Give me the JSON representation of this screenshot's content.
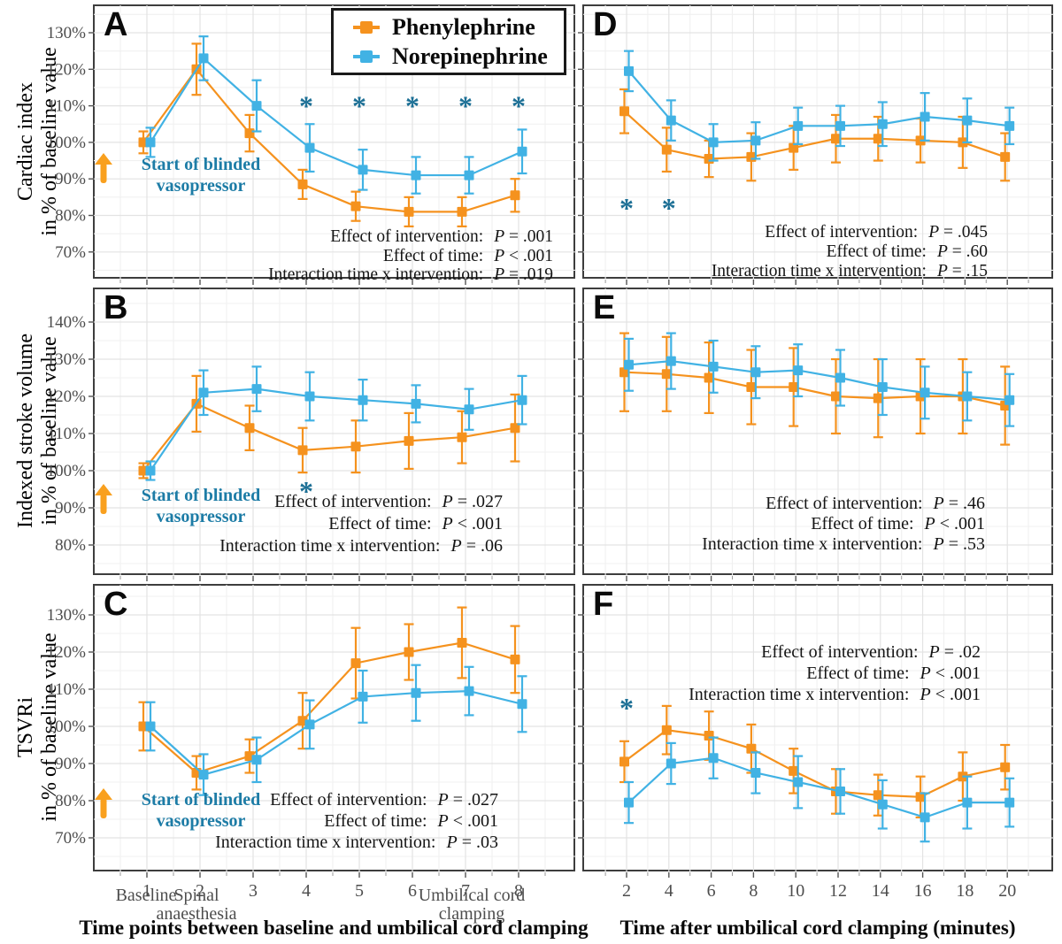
{
  "figure": {
    "description": "Six-panel clinical trial figure comparing Phenylephrine vs Norepinephrine haemodynamics"
  },
  "colors": {
    "phenylephrine": "#F5921E",
    "norepinephrine": "#41B2E4",
    "asterisk": "#1C6F95",
    "annotation_text": "#1D7CA6",
    "arrow": "#F9A01E",
    "grid_major": "#e3e3e3",
    "grid_minor": "#f0f0f0",
    "tick_label": "#4d4d4d",
    "panel_border": "#3d3d3d"
  },
  "legend": {
    "items": [
      {
        "label": "Phenylephrine",
        "color": "#F5921E"
      },
      {
        "label": "Norepinephrine",
        "color": "#41B2E4"
      }
    ]
  },
  "row_labels": [
    {
      "lines": [
        "Cardiac index",
        "in % of baseline value"
      ]
    },
    {
      "lines": [
        "Indexed stroke volume",
        "in % of baseline value"
      ]
    },
    {
      "lines": [
        "TSVRi",
        "in % of baseline value"
      ]
    }
  ],
  "annotation": {
    "lines": [
      "Start of blinded",
      "vasopressor"
    ]
  },
  "x_axes": {
    "left": {
      "title": "Time points between baseline and umbilical cord clamping",
      "ticks": [
        "1",
        "2",
        "3",
        "4",
        "5",
        "6",
        "7",
        "8"
      ],
      "tick_annotations": [
        {
          "at": "1",
          "lines": [
            "Baseline",
            ""
          ]
        },
        {
          "at": "2",
          "lines": [
            "Spinal",
            "anaesthesia"
          ]
        },
        {
          "at": "8",
          "lines": [
            "Umbilical cord",
            "clamping"
          ]
        }
      ]
    },
    "right": {
      "title": "Time after umbilical cord clamping (minutes)",
      "ticks": [
        "2",
        "4",
        "6",
        "8",
        "10",
        "12",
        "14",
        "16",
        "18",
        "20"
      ]
    }
  },
  "chart_data": [
    {
      "panel": "A",
      "type": "line",
      "title": "Cardiac index in % of baseline value, baseline to umbilical cord clamping",
      "x": [
        1,
        2,
        3,
        4,
        5,
        6,
        7,
        8
      ],
      "ylim": [
        70,
        130
      ],
      "yticks": [
        70,
        80,
        90,
        100,
        110,
        120,
        130
      ],
      "ytick_format": "percent",
      "series": [
        {
          "name": "Phenylephrine",
          "color": "#F5921E",
          "values": [
            100,
            120,
            102.5,
            88.5,
            82.5,
            81,
            81,
            85.5
          ],
          "err": [
            3,
            7,
            5,
            4,
            4,
            4,
            4,
            4.5
          ]
        },
        {
          "name": "Norepinephrine",
          "color": "#41B2E4",
          "values": [
            100,
            123,
            110,
            98.5,
            92.5,
            91,
            91,
            97.5
          ],
          "err": [
            4,
            6,
            7,
            6.5,
            5.5,
            5,
            5,
            6
          ]
        }
      ],
      "asterisks": {
        "x": [
          4,
          5,
          6,
          7,
          8
        ],
        "y": 110.5
      },
      "has_annotation": true,
      "stats": [
        {
          "label": "Effect of intervention:",
          "p": "P = .001"
        },
        {
          "label": "Effect of time:",
          "p": "P < .001"
        },
        {
          "label": "Interaction time x intervention:",
          "p": "P = .019"
        }
      ]
    },
    {
      "panel": "D",
      "type": "line",
      "title": "Cardiac index in % of baseline value, after umbilical cord clamping",
      "x": [
        2,
        4,
        6,
        8,
        10,
        12,
        14,
        16,
        18,
        20
      ],
      "ylim": [
        70,
        130
      ],
      "yticks": [
        70,
        80,
        90,
        100,
        110,
        120,
        130
      ],
      "ytick_format": "none",
      "series": [
        {
          "name": "Phenylephrine",
          "color": "#F5921E",
          "values": [
            108.5,
            98,
            95.5,
            96,
            98.5,
            101,
            101,
            100.5,
            100,
            96
          ],
          "err": [
            6,
            6,
            5,
            6.5,
            6,
            6.5,
            6,
            6,
            7,
            6.5
          ]
        },
        {
          "name": "Norepinephrine",
          "color": "#41B2E4",
          "values": [
            119.5,
            106,
            100,
            100.5,
            104.5,
            104.5,
            105,
            107,
            106,
            104.5
          ],
          "err": [
            5.5,
            5.5,
            5,
            5,
            5,
            5.5,
            6,
            6.5,
            6,
            5
          ]
        }
      ],
      "asterisks": {
        "x": [
          2,
          4
        ],
        "y": 82.5
      },
      "has_annotation": false,
      "stats": [
        {
          "label": "Effect of intervention:",
          "p": "P = .045"
        },
        {
          "label": "Effect of time:",
          "p": "P = .60"
        },
        {
          "label": "Interaction time x intervention:",
          "p": "P = .15"
        }
      ]
    },
    {
      "panel": "B",
      "type": "line",
      "title": "Indexed stroke volume in % of baseline value, baseline to umbilical cord clamping",
      "x": [
        1,
        2,
        3,
        4,
        5,
        6,
        7,
        8
      ],
      "ylim": [
        80,
        140
      ],
      "yticks": [
        80,
        90,
        100,
        110,
        120,
        130,
        140
      ],
      "ytick_format": "percent",
      "series": [
        {
          "name": "Phenylephrine",
          "color": "#F5921E",
          "values": [
            100,
            118,
            111.5,
            105.5,
            106.5,
            108,
            109,
            111.5
          ],
          "err": [
            2,
            7.5,
            6,
            6,
            7,
            7.5,
            7,
            9
          ]
        },
        {
          "name": "Norepinephrine",
          "color": "#41B2E4",
          "values": [
            100,
            121,
            122,
            120,
            119,
            118,
            116.5,
            119
          ],
          "err": [
            2.5,
            6,
            6,
            6.5,
            5.5,
            5,
            5.5,
            6.5
          ]
        }
      ],
      "asterisks": {
        "x": [
          4
        ],
        "y": 95
      },
      "has_annotation": true,
      "stats": [
        {
          "label": "Effect of intervention:",
          "p": "P = .027"
        },
        {
          "label": "Effect of time:",
          "p": "P < .001"
        },
        {
          "label": "Interaction time x intervention:",
          "p": "P = .06"
        }
      ]
    },
    {
      "panel": "E",
      "type": "line",
      "title": "Indexed stroke volume in % of baseline value, after umbilical cord clamping",
      "x": [
        2,
        4,
        6,
        8,
        10,
        12,
        14,
        16,
        18,
        20
      ],
      "ylim": [
        80,
        140
      ],
      "yticks": [
        80,
        90,
        100,
        110,
        120,
        130,
        140
      ],
      "ytick_format": "none",
      "series": [
        {
          "name": "Phenylephrine",
          "color": "#F5921E",
          "values": [
            126.5,
            126,
            125,
            122.5,
            122.5,
            120,
            119.5,
            120,
            120,
            117.5
          ],
          "err": [
            10.5,
            10,
            9.5,
            10,
            10.5,
            10,
            10.5,
            10,
            10,
            10.5
          ]
        },
        {
          "name": "Norepinephrine",
          "color": "#41B2E4",
          "values": [
            128.5,
            129.5,
            128,
            126.5,
            127,
            125,
            122.5,
            121,
            120,
            119
          ],
          "err": [
            7,
            7.5,
            7,
            7,
            7,
            7.5,
            7.5,
            7,
            6.5,
            7
          ]
        }
      ],
      "asterisks": {
        "x": [],
        "y": null
      },
      "has_annotation": false,
      "stats": [
        {
          "label": "Effect of intervention:",
          "p": "P = .46"
        },
        {
          "label": "Effect of time:",
          "p": "P < .001"
        },
        {
          "label": "Interaction time x intervention:",
          "p": "P = .53"
        }
      ]
    },
    {
      "panel": "C",
      "type": "line",
      "title": "TSVRi in % of baseline value, baseline to umbilical cord clamping",
      "x": [
        1,
        2,
        3,
        4,
        5,
        6,
        7,
        8
      ],
      "ylim": [
        70,
        130
      ],
      "yticks": [
        70,
        80,
        90,
        100,
        110,
        120,
        130
      ],
      "ytick_format": "percent",
      "series": [
        {
          "name": "Phenylephrine",
          "color": "#F5921E",
          "values": [
            100,
            87.5,
            92,
            101.5,
            117,
            120,
            122.5,
            118
          ],
          "err": [
            6.5,
            4.5,
            4.5,
            7.5,
            9.5,
            7.5,
            9.5,
            9
          ]
        },
        {
          "name": "Norepinephrine",
          "color": "#41B2E4",
          "values": [
            100,
            87,
            91,
            100.5,
            108,
            109,
            109.5,
            106
          ],
          "err": [
            6.5,
            5.5,
            6,
            6.5,
            7,
            7.5,
            6.5,
            7.5
          ]
        }
      ],
      "asterisks": {
        "x": [],
        "y": null
      },
      "has_annotation": true,
      "stats": [
        {
          "label": "Effect of intervention:",
          "p": "P = .027"
        },
        {
          "label": "Effect of time:",
          "p": "P < .001"
        },
        {
          "label": "Interaction time x intervention:",
          "p": "P = .03"
        }
      ]
    },
    {
      "panel": "F",
      "type": "line",
      "title": "TSVRi in % of baseline value, after umbilical cord clamping",
      "x": [
        2,
        4,
        6,
        8,
        10,
        12,
        14,
        16,
        18,
        20
      ],
      "ylim": [
        70,
        130
      ],
      "yticks": [
        70,
        80,
        90,
        100,
        110,
        120,
        130
      ],
      "ytick_format": "none",
      "series": [
        {
          "name": "Phenylephrine",
          "color": "#F5921E",
          "values": [
            90.5,
            99,
            97.5,
            94,
            88,
            82.5,
            81.5,
            81,
            86.5,
            89
          ],
          "err": [
            5.5,
            6.5,
            6.5,
            6.5,
            6,
            6,
            5.5,
            5.5,
            6.5,
            6
          ]
        },
        {
          "name": "Norepinephrine",
          "color": "#41B2E4",
          "values": [
            79.5,
            90,
            91.5,
            87.5,
            85,
            82.5,
            79,
            75.5,
            79.5,
            79.5
          ],
          "err": [
            5.5,
            5.5,
            5.5,
            5.5,
            7,
            6,
            6.5,
            6.5,
            7,
            6.5
          ]
        }
      ],
      "asterisks": {
        "x": [
          2
        ],
        "y": 105.5
      },
      "has_annotation": false,
      "stats": [
        {
          "label": "Effect of intervention:",
          "p": "P = .02"
        },
        {
          "label": "Effect of time:",
          "p": "P < .001"
        },
        {
          "label": "Interaction time x intervention:",
          "p": "P < .001"
        }
      ]
    }
  ]
}
